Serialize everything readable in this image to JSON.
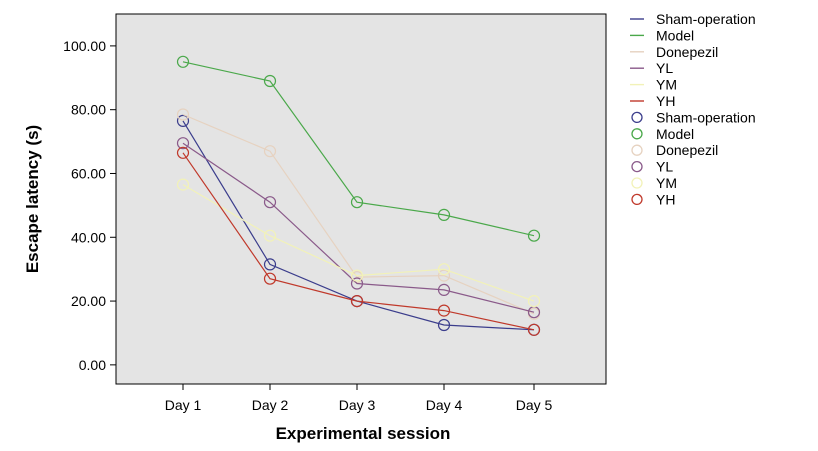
{
  "chart_data": {
    "type": "line",
    "title": "",
    "xlabel": "Experimental session",
    "ylabel": "Escape latency (s)",
    "categories": [
      "Day 1",
      "Day 2",
      "Day 3",
      "Day 4",
      "Day 5"
    ],
    "ylim": [
      -6,
      110
    ],
    "yticks": [
      "0.00",
      "20.00",
      "40.00",
      "60.00",
      "80.00",
      "100.00"
    ],
    "ytick_values": [
      0,
      20,
      40,
      60,
      80,
      100
    ],
    "grid": false,
    "background": "#e4e4e4",
    "legend_position": "right",
    "series": [
      {
        "name": "Sham-operation",
        "color": "#3b3d8c",
        "values": [
          76.5,
          31.5,
          20.0,
          12.5,
          11.0
        ]
      },
      {
        "name": "Model",
        "color": "#4aa84a",
        "values": [
          95.0,
          89.0,
          51.0,
          47.0,
          40.5
        ]
      },
      {
        "name": "Donepezil",
        "color": "#e6d2c0",
        "values": [
          78.5,
          67.0,
          27.5,
          28.0,
          16.0
        ]
      },
      {
        "name": "YL",
        "color": "#8a5a8a",
        "values": [
          69.5,
          51.0,
          25.5,
          23.5,
          16.5
        ]
      },
      {
        "name": "YM",
        "color": "#f2f2b8",
        "values": [
          56.5,
          40.5,
          28.0,
          30.0,
          20.0
        ]
      },
      {
        "name": "YH",
        "color": "#c0392b",
        "values": [
          66.5,
          27.0,
          20.0,
          17.0,
          11.0
        ]
      }
    ],
    "legend_entries": [
      {
        "label": "Sham-operation",
        "marker": "line",
        "color": "#3b3d8c"
      },
      {
        "label": "Model",
        "marker": "line",
        "color": "#4aa84a"
      },
      {
        "label": "Donepezil",
        "marker": "line",
        "color": "#e6d2c0"
      },
      {
        "label": "YL",
        "marker": "line",
        "color": "#8a5a8a"
      },
      {
        "label": "YM",
        "marker": "line",
        "color": "#f2f2b8"
      },
      {
        "label": "YH",
        "marker": "line",
        "color": "#c0392b"
      },
      {
        "label": "Sham-operation",
        "marker": "circle",
        "color": "#3b3d8c"
      },
      {
        "label": "Model",
        "marker": "circle",
        "color": "#4aa84a"
      },
      {
        "label": "Donepezil",
        "marker": "circle",
        "color": "#e6d2c0"
      },
      {
        "label": "YL",
        "marker": "circle",
        "color": "#8a5a8a"
      },
      {
        "label": "YM",
        "marker": "circle",
        "color": "#f2f2b8"
      },
      {
        "label": "YH",
        "marker": "circle",
        "color": "#c0392b"
      }
    ]
  }
}
